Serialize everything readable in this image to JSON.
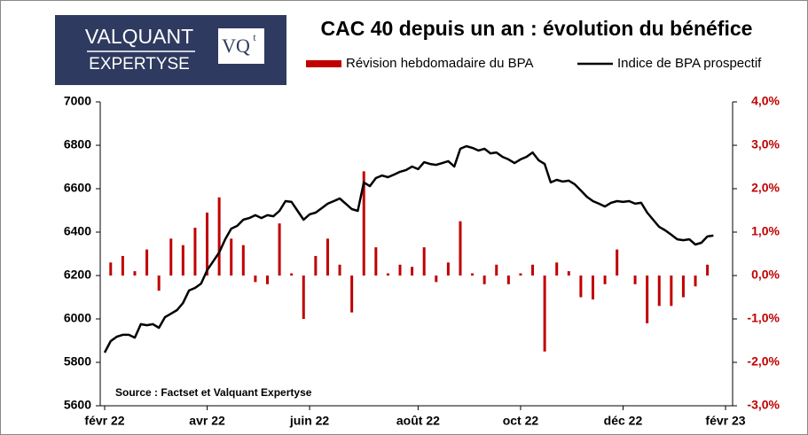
{
  "logo": {
    "line1": "VALQUANT",
    "line2": "EXPERTYSE",
    "mark": "VQ",
    "mark_sup": "t"
  },
  "chart_data": {
    "type": "combo",
    "title": "CAC 40 depuis un an : évolution du bénéfice",
    "annotation": "Source : Factset et Valquant Expertyse",
    "categories": [
      "févr 22",
      null,
      null,
      null,
      null,
      null,
      null,
      null,
      null,
      null,
      null,
      null,
      null,
      null,
      null,
      null,
      null,
      "avr 22",
      null,
      null,
      null,
      null,
      null,
      null,
      null,
      null,
      null,
      null,
      null,
      null,
      null,
      null,
      null,
      null,
      "juin 22",
      null,
      null,
      null,
      null,
      null,
      null,
      null,
      null,
      null,
      null,
      null,
      null,
      null,
      null,
      null,
      null,
      null,
      "août 22",
      null,
      null,
      null,
      null,
      null,
      null,
      null,
      null,
      null,
      null,
      null,
      null,
      null,
      null,
      null,
      null,
      "oct 22",
      null,
      null,
      null,
      null,
      null,
      null,
      null,
      null,
      null,
      null,
      null,
      null,
      null,
      null,
      null,
      null,
      "déc 22",
      null,
      null,
      null,
      null,
      null,
      null,
      null,
      null,
      null,
      null,
      null,
      null,
      null,
      null,
      null,
      null,
      "févr 23",
      null
    ],
    "series": [
      {
        "name": "Révision hebdomadaire du BPA",
        "type": "bar",
        "axis": "y2",
        "color": "#c00000",
        "values": [
          null,
          0.3,
          null,
          0.45,
          null,
          0.1,
          null,
          0.6,
          null,
          -0.35,
          null,
          0.85,
          null,
          0.7,
          null,
          1.1,
          null,
          1.45,
          null,
          1.8,
          null,
          0.85,
          null,
          0.7,
          null,
          -0.15,
          null,
          -0.2,
          null,
          1.2,
          null,
          0.05,
          null,
          -1.0,
          null,
          0.45,
          null,
          0.85,
          null,
          0.25,
          null,
          -0.85,
          null,
          2.4,
          null,
          0.65,
          null,
          0.05,
          null,
          0.25,
          null,
          0.2,
          null,
          0.65,
          null,
          -0.15,
          null,
          0.3,
          null,
          1.25,
          null,
          0.05,
          null,
          -0.2,
          null,
          0.25,
          null,
          -0.2,
          null,
          0.05,
          null,
          0.25,
          null,
          -1.75,
          null,
          0.3,
          null,
          0.1,
          null,
          -0.5,
          null,
          -0.55,
          null,
          -0.2,
          null,
          0.6,
          null,
          null,
          -0.2,
          null,
          -1.1,
          null,
          -0.7,
          null,
          -0.7,
          null,
          -0.5,
          null,
          -0.25,
          null,
          0.25,
          null,
          null,
          null,
          null
        ]
      },
      {
        "name": "Indice de BPA prospectif",
        "type": "line",
        "color": "#000000",
        "values": [
          5845,
          5898,
          5918,
          5927,
          5927,
          5914,
          5976,
          5971,
          5976,
          5959,
          6008,
          6024,
          6041,
          6073,
          6131,
          6143,
          6163,
          6224,
          6265,
          6306,
          6367,
          6416,
          6429,
          6457,
          6465,
          6478,
          6465,
          6478,
          6473,
          6498,
          6543,
          6539,
          6498,
          6457,
          6482,
          6490,
          6510,
          6531,
          6543,
          6555,
          6531,
          6506,
          6498,
          6629,
          6612,
          6649,
          6661,
          6653,
          6665,
          6678,
          6686,
          6702,
          6690,
          6722,
          6714,
          6710,
          6718,
          6727,
          6702,
          6784,
          6796,
          6788,
          6776,
          6784,
          6763,
          6767,
          6747,
          6735,
          6718,
          6735,
          6747,
          6767,
          6731,
          6714,
          6629,
          6641,
          6633,
          6637,
          6620,
          6592,
          6563,
          6543,
          6531,
          6518,
          6535,
          6543,
          6539,
          6543,
          6531,
          6535,
          6490,
          6457,
          6424,
          6408,
          6388,
          6367,
          6363,
          6367,
          6343,
          6351,
          6380,
          6384,
          null,
          null,
          null
        ]
      }
    ],
    "ylim": [
      5600,
      7000
    ],
    "yticks": [
      5600,
      5800,
      6000,
      6200,
      6400,
      6600,
      6800,
      7000
    ],
    "y2lim": [
      -3,
      4
    ],
    "y2ticks": [
      {
        "value": -3,
        "label": "-3,0%"
      },
      {
        "value": -2,
        "label": "-2,0%"
      },
      {
        "value": -1,
        "label": "-1,0%"
      },
      {
        "value": 0,
        "label": "0,0%"
      },
      {
        "value": 1,
        "label": "1,0%"
      },
      {
        "value": 2,
        "label": "2,0%"
      },
      {
        "value": 3,
        "label": "3,0%"
      },
      {
        "value": 4,
        "label": "4,0%"
      }
    ],
    "y2color": "#c00000"
  }
}
